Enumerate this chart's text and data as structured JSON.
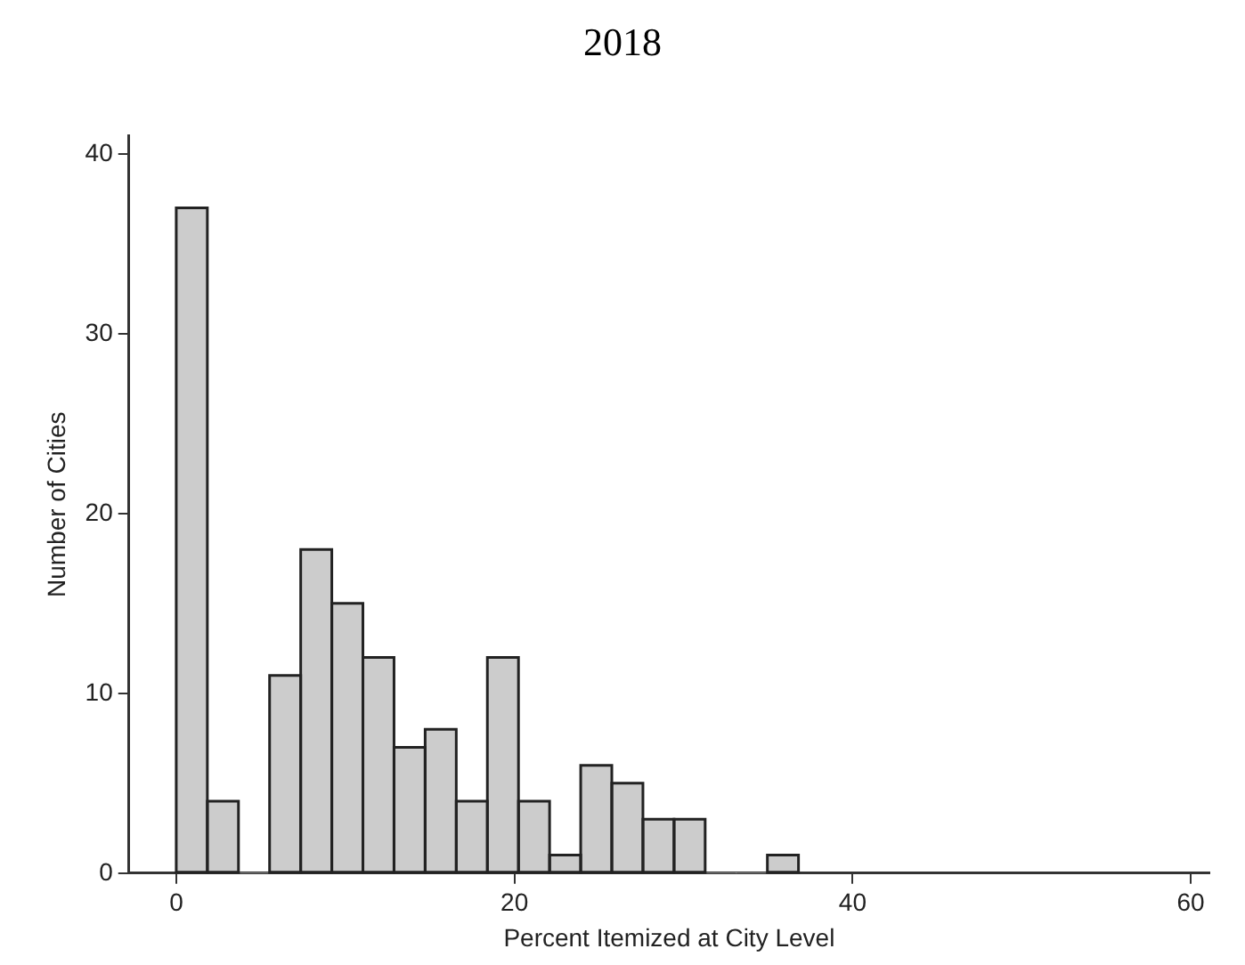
{
  "chart_data": {
    "type": "histogram",
    "title": "2018",
    "xlabel": "Percent Itemized at City Level",
    "ylabel": "Number of Cities",
    "bins": [
      0,
      1.84,
      3.68,
      5.52,
      7.36,
      9.2,
      11.04,
      12.88,
      14.72,
      16.56,
      18.4,
      20.24,
      22.08,
      23.92,
      25.76,
      27.6,
      29.44,
      31.28,
      33.12,
      34.96,
      36.8
    ],
    "values": [
      37,
      4,
      0,
      11,
      18,
      15,
      12,
      7,
      8,
      4,
      12,
      4,
      1,
      6,
      5,
      3,
      3,
      0,
      0,
      1
    ],
    "color": "#cccccc",
    "xlim": [
      -2.8,
      61.1
    ],
    "xticks": [
      0,
      20,
      40,
      60
    ],
    "ylim": [
      0,
      41
    ],
    "yticks": [
      0,
      10,
      20,
      30,
      40
    ],
    "grid": false,
    "legend": false
  }
}
